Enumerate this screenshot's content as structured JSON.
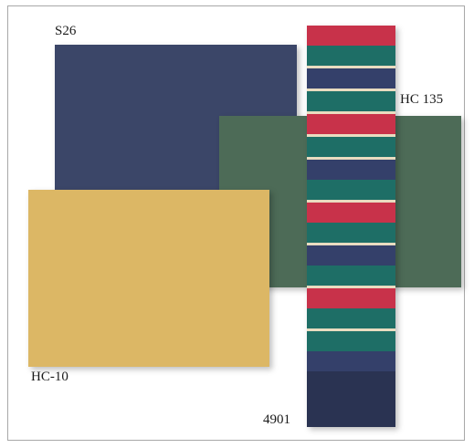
{
  "swatches": {
    "navy": {
      "label": "S26",
      "color": "#3b4668"
    },
    "green": {
      "label": "HC 135",
      "color": "#4d6b57"
    },
    "gold": {
      "label": "HC-10",
      "color": "#dcb765"
    },
    "stripe": {
      "label": "4901"
    }
  },
  "stripe_colors": {
    "red": "#c8324a",
    "teal": "#1e6e66",
    "navy": "#34406a",
    "cream": "#e9dcc0",
    "dark": "#2a3352"
  },
  "stripe_pattern": [
    "red",
    "teal",
    "cream",
    "navy",
    "cream",
    "teal",
    "cream",
    "red",
    "cream",
    "teal",
    "cream",
    "navy",
    "teal",
    "cream",
    "red",
    "teal",
    "cream",
    "navy",
    "teal",
    "cream",
    "red",
    "teal",
    "cream",
    "teal",
    "navy",
    "dark"
  ]
}
